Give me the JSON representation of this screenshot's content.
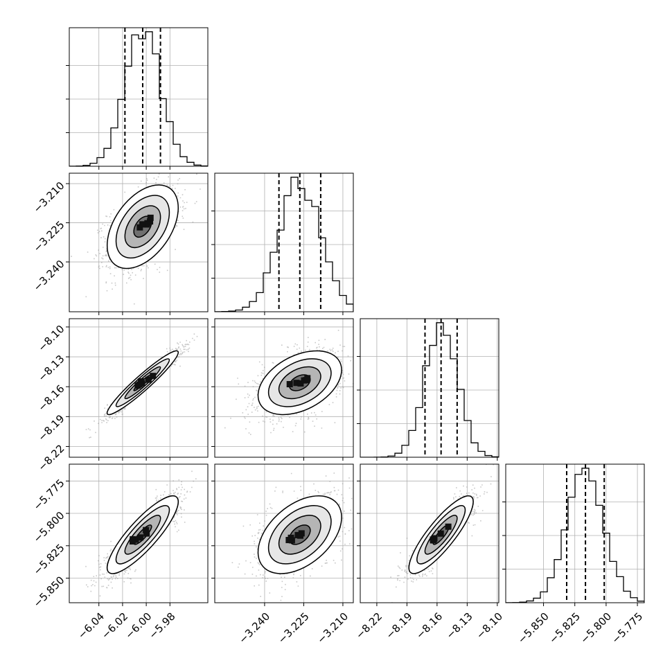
{
  "chart_data": {
    "type": "corner",
    "title": "",
    "dimensions": 4,
    "grid": true,
    "parameters": [
      {
        "median": -6.003,
        "q16": -6.018,
        "q84": -5.988,
        "sigma": 0.015,
        "hist_range": [
          -6.065,
          -5.948
        ]
      },
      {
        "median": -3.2265,
        "q16": -3.2345,
        "q84": -3.2185,
        "sigma": 0.008,
        "hist_range": [
          -3.2591,
          -3.206
        ]
      },
      {
        "median": -8.156,
        "q16": -8.172,
        "q84": -8.14,
        "sigma": 0.016,
        "hist_range": [
          -8.2365,
          -8.0985
        ]
      },
      {
        "median": -5.8165,
        "q16": -5.8315,
        "q84": -5.8015,
        "sigma": 0.015,
        "hist_range": [
          -5.8802,
          -5.7695
        ]
      }
    ],
    "correlations": [
      [
        0,
        1,
        0.45
      ],
      [
        0,
        2,
        0.95
      ],
      [
        0,
        3,
        0.85
      ],
      [
        1,
        2,
        0.4
      ],
      [
        1,
        3,
        0.45
      ],
      [
        2,
        3,
        0.85
      ]
    ],
    "x_ticks": [
      [
        "-6.04",
        "-6.02",
        "-6.00",
        "-5.98"
      ],
      [
        "-3.240",
        "-3.225",
        "-3.210"
      ],
      [
        "-8.22",
        "-8.19",
        "-8.16",
        "-8.13",
        "-8.10"
      ],
      [
        "-5.850",
        "-5.825",
        "-5.800",
        "-5.775"
      ]
    ],
    "x_tick_labels": [
      [
        "−6.04",
        "−6.02",
        "−6.00",
        "−5.98"
      ],
      [
        "−3.240",
        "−3.225",
        "−3.210"
      ],
      [
        "−8.22",
        "−8.19",
        "−8.16",
        "−8.13",
        "−8.10"
      ],
      [
        "−5.850",
        "−5.825",
        "−5.800",
        "−5.775"
      ]
    ],
    "y_ticks": [
      [],
      [
        "-3.210",
        "-3.225",
        "-3.240"
      ],
      [
        "-8.10",
        "-8.13",
        "-8.16",
        "-8.19",
        "-8.22"
      ],
      [
        "-5.775",
        "-5.800",
        "-5.825",
        "-5.850"
      ]
    ],
    "y_tick_labels": [
      [],
      [
        "−3.210",
        "−3.225",
        "−3.240"
      ],
      [
        "−8.10",
        "−8.13",
        "−8.16",
        "−8.19",
        "−8.22"
      ],
      [
        "−5.775",
        "−5.800",
        "−5.825",
        "−5.850"
      ]
    ],
    "quantiles": [
      0.16,
      0.5,
      0.84
    ],
    "contour_levels_sigma": [
      0.5,
      1,
      1.5,
      2
    ],
    "colors": {
      "contour": "#000000",
      "points": "#9a9a9a",
      "grid": "#b0b0b0",
      "axes": "#000000"
    }
  }
}
